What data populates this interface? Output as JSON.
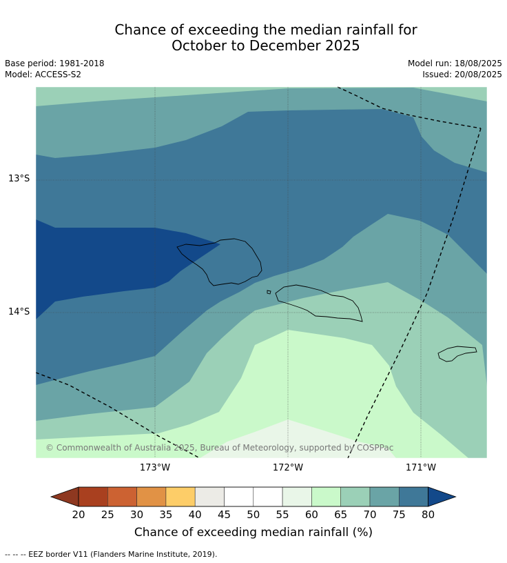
{
  "header": {
    "title_line1": "Chance of exceeding the median rainfall for",
    "title_line2": "October to December 2025",
    "base_period": "Base period: 1981-2018",
    "model": "Model: ACCESS-S2",
    "model_run": "Model run: 18/08/2025",
    "issued": "Issued: 20/08/2025"
  },
  "map": {
    "lat_labels": [
      "13°S",
      "14°S"
    ],
    "lon_labels": [
      "173°W",
      "172°W",
      "171°W"
    ],
    "copyright": "© Commonwealth of Australia 2025, Bureau of Meteorology, supported by COSPPac"
  },
  "colorbar": {
    "ticks": [
      "20",
      "25",
      "30",
      "35",
      "40",
      "45",
      "50",
      "55",
      "60",
      "65",
      "70",
      "75",
      "80"
    ],
    "colors": [
      "#a9401f",
      "#cc6232",
      "#e19245",
      "#fdcd68",
      "#ecebe6",
      "#ffffff",
      "#ffffff",
      "#e9f6e8",
      "#caf9ca",
      "#9bd0b7",
      "#6aa4a6",
      "#3f7898"
    ],
    "under_color": "#8e3820",
    "over_color": "#13498a",
    "label": "Chance of exceeding median rainfall (%)"
  },
  "legend": {
    "eez": "--  --  -- EEZ border V11 (Flanders Marine Institute, 2019)."
  }
}
